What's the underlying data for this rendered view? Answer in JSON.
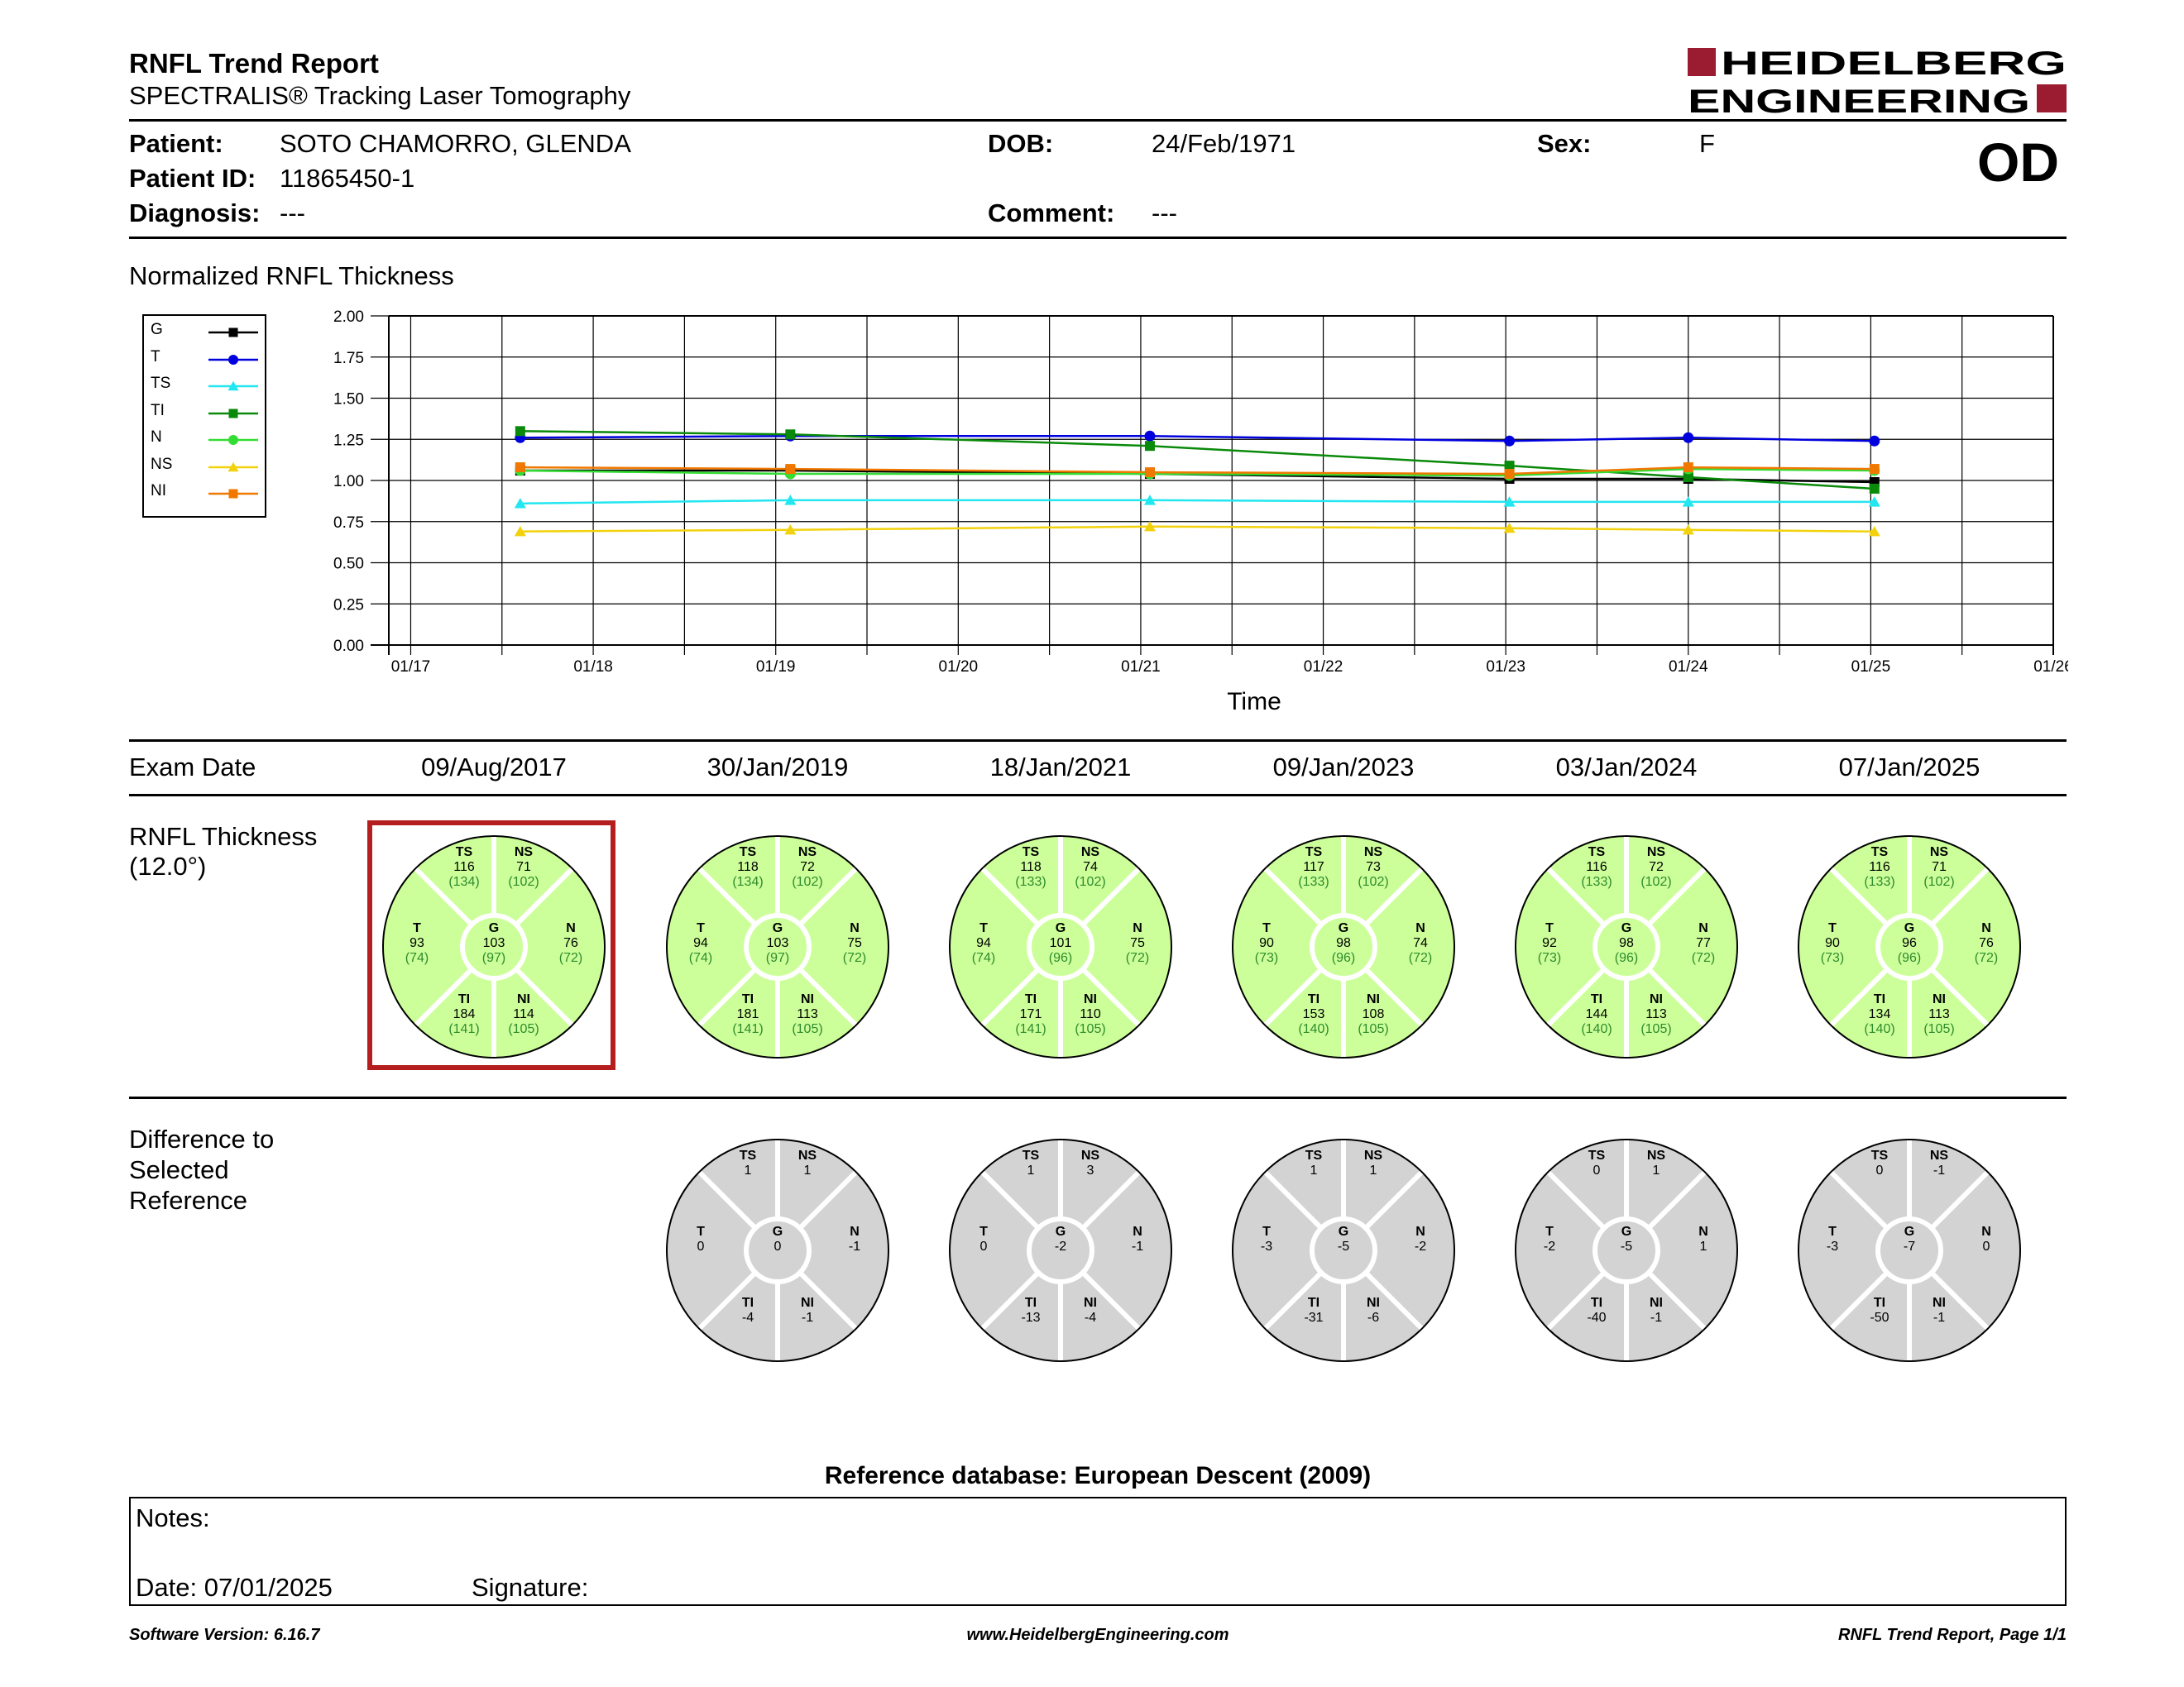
{
  "header": {
    "title": "RNFL Trend Report",
    "subtitle": "SPECTRALIS® Tracking Laser Tomography",
    "logo_line1": "HEIDELBERG",
    "logo_line2": "ENGINEERING",
    "eye": "OD"
  },
  "patient": {
    "patient_label": "Patient:",
    "patient_value": "SOTO CHAMORRO, GLENDA",
    "id_label": "Patient ID:",
    "id_value": "11865450-1",
    "diagnosis_label": "Diagnosis:",
    "diagnosis_value": "---",
    "dob_label": "DOB:",
    "dob_value": "24/Feb/1971",
    "comment_label": "Comment:",
    "comment_value": "---",
    "sex_label": "Sex:",
    "sex_value": "F"
  },
  "chart_section_title": "Normalized RNFL Thickness",
  "chart_data": {
    "type": "line",
    "title": "",
    "xlabel": "Time",
    "ylabel": "",
    "ylim": [
      0,
      2
    ],
    "yticks": [
      "0.00",
      "0.25",
      "0.50",
      "0.75",
      "1.00",
      "1.25",
      "1.50",
      "1.75",
      "2.00"
    ],
    "x_tick_labels": [
      "01/17",
      "01/18",
      "01/19",
      "01/20",
      "01/21",
      "01/22",
      "01/23",
      "01/24",
      "01/25",
      "01/26"
    ],
    "x_tick_years": [
      2017,
      2018,
      2019,
      2020,
      2021,
      2022,
      2023,
      2024,
      2025,
      2026
    ],
    "xlim": [
      2016.88,
      2026.0
    ],
    "grid": true,
    "legend_position": "left",
    "x": [
      2017.6,
      2019.08,
      2021.05,
      2023.02,
      2024.0,
      2025.02
    ],
    "series": [
      {
        "name": "G",
        "color": "#000000",
        "marker": "square",
        "values": [
          1.06,
          1.06,
          1.04,
          1.01,
          1.01,
          0.99
        ]
      },
      {
        "name": "T",
        "color": "#0000dd",
        "marker": "circle",
        "values": [
          1.26,
          1.27,
          1.27,
          1.24,
          1.26,
          1.24
        ]
      },
      {
        "name": "TS",
        "color": "#22e6f0",
        "marker": "triangle",
        "values": [
          0.86,
          0.88,
          0.88,
          0.87,
          0.87,
          0.87
        ]
      },
      {
        "name": "TI",
        "color": "#0a8a0a",
        "marker": "square",
        "values": [
          1.3,
          1.28,
          1.21,
          1.09,
          1.02,
          0.95
        ]
      },
      {
        "name": "N",
        "color": "#33dd33",
        "marker": "circle",
        "values": [
          1.06,
          1.04,
          1.04,
          1.03,
          1.07,
          1.06
        ]
      },
      {
        "name": "NS",
        "color": "#f2d20c",
        "marker": "triangle",
        "values": [
          0.69,
          0.7,
          0.72,
          0.71,
          0.7,
          0.69
        ]
      },
      {
        "name": "NI",
        "color": "#f07800",
        "marker": "square",
        "values": [
          1.08,
          1.07,
          1.05,
          1.04,
          1.08,
          1.07
        ]
      }
    ]
  },
  "exam": {
    "label": "Exam Date",
    "dates": [
      "09/Aug/2017",
      "30/Jan/2019",
      "18/Jan/2021",
      "09/Jan/2023",
      "03/Jan/2024",
      "07/Jan/2025"
    ]
  },
  "thickness": {
    "label_line1": "RNFL Thickness",
    "label_line2": "(12.0°)",
    "selected_index": 0,
    "fill_color": "#ccff99",
    "norm_color": "#2e8b2e",
    "exams": [
      {
        "TS": [
          "116",
          "(134)"
        ],
        "NS": [
          "71",
          "(102)"
        ],
        "T": [
          "93",
          "(74)"
        ],
        "G": [
          "103",
          "(97)"
        ],
        "N": [
          "76",
          "(72)"
        ],
        "TI": [
          "184",
          "(141)"
        ],
        "NI": [
          "114",
          "(105)"
        ]
      },
      {
        "TS": [
          "118",
          "(134)"
        ],
        "NS": [
          "72",
          "(102)"
        ],
        "T": [
          "94",
          "(74)"
        ],
        "G": [
          "103",
          "(97)"
        ],
        "N": [
          "75",
          "(72)"
        ],
        "TI": [
          "181",
          "(141)"
        ],
        "NI": [
          "113",
          "(105)"
        ]
      },
      {
        "TS": [
          "118",
          "(133)"
        ],
        "NS": [
          "74",
          "(102)"
        ],
        "T": [
          "94",
          "(74)"
        ],
        "G": [
          "101",
          "(96)"
        ],
        "N": [
          "75",
          "(72)"
        ],
        "TI": [
          "171",
          "(141)"
        ],
        "NI": [
          "110",
          "(105)"
        ]
      },
      {
        "TS": [
          "117",
          "(133)"
        ],
        "NS": [
          "73",
          "(102)"
        ],
        "T": [
          "90",
          "(73)"
        ],
        "G": [
          "98",
          "(96)"
        ],
        "N": [
          "74",
          "(72)"
        ],
        "TI": [
          "153",
          "(140)"
        ],
        "NI": [
          "108",
          "(105)"
        ]
      },
      {
        "TS": [
          "116",
          "(133)"
        ],
        "NS": [
          "72",
          "(102)"
        ],
        "T": [
          "92",
          "(73)"
        ],
        "G": [
          "98",
          "(96)"
        ],
        "N": [
          "77",
          "(72)"
        ],
        "TI": [
          "144",
          "(140)"
        ],
        "NI": [
          "113",
          "(105)"
        ]
      },
      {
        "TS": [
          "116",
          "(133)"
        ],
        "NS": [
          "71",
          "(102)"
        ],
        "T": [
          "90",
          "(73)"
        ],
        "G": [
          "96",
          "(96)"
        ],
        "N": [
          "76",
          "(72)"
        ],
        "TI": [
          "134",
          "(140)"
        ],
        "NI": [
          "113",
          "(105)"
        ]
      }
    ]
  },
  "difference": {
    "label_line1": "Difference to",
    "label_line2": "Selected",
    "label_line3": "Reference",
    "fill_color": "#d3d3d3",
    "exams": [
      null,
      {
        "TS": "1",
        "NS": "1",
        "T": "0",
        "G": "0",
        "N": "-1",
        "TI": "-4",
        "NI": "-1"
      },
      {
        "TS": "1",
        "NS": "3",
        "T": "0",
        "G": "-2",
        "N": "-1",
        "TI": "-13",
        "NI": "-4"
      },
      {
        "TS": "1",
        "NS": "1",
        "T": "-3",
        "G": "-5",
        "N": "-2",
        "TI": "-31",
        "NI": "-6"
      },
      {
        "TS": "0",
        "NS": "1",
        "T": "-2",
        "G": "-5",
        "N": "1",
        "TI": "-40",
        "NI": "-1"
      },
      {
        "TS": "0",
        "NS": "-1",
        "T": "-3",
        "G": "-7",
        "N": "0",
        "TI": "-50",
        "NI": "-1"
      }
    ]
  },
  "reference_db": "Reference database: European Descent (2009)",
  "notes": {
    "notes_label": "Notes:",
    "date_label": "Date: 07/01/2025",
    "signature_label": "Signature:"
  },
  "footer": {
    "software": "Software Version: 6.16.7",
    "website": "www.HeidelbergEngineering.com",
    "page": "RNFL Trend Report, Page 1/1"
  },
  "colors": {
    "brand": "#9b1b30",
    "selected_border": "#b41e1e"
  }
}
